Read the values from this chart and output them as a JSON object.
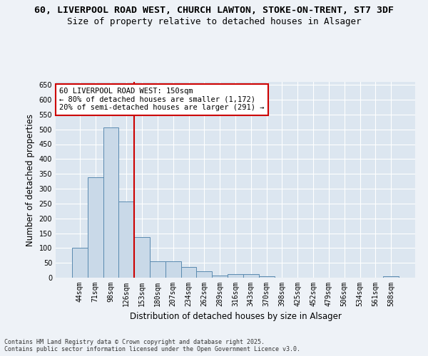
{
  "title_line1": "60, LIVERPOOL ROAD WEST, CHURCH LAWTON, STOKE-ON-TRENT, ST7 3DF",
  "title_line2": "Size of property relative to detached houses in Alsager",
  "xlabel": "Distribution of detached houses by size in Alsager",
  "ylabel": "Number of detached properties",
  "categories": [
    "44sqm",
    "71sqm",
    "98sqm",
    "126sqm",
    "153sqm",
    "180sqm",
    "207sqm",
    "234sqm",
    "262sqm",
    "289sqm",
    "316sqm",
    "343sqm",
    "370sqm",
    "398sqm",
    "425sqm",
    "452sqm",
    "479sqm",
    "506sqm",
    "534sqm",
    "561sqm",
    "588sqm"
  ],
  "values": [
    100,
    338,
    506,
    257,
    137,
    55,
    55,
    35,
    22,
    8,
    11,
    11,
    5,
    0,
    0,
    0,
    0,
    0,
    0,
    0,
    4
  ],
  "bar_color": "#c9d9e8",
  "bar_edge_color": "#5a8ab0",
  "vline_x": 3.5,
  "vline_color": "#cc0000",
  "annotation_box_text": "60 LIVERPOOL ROAD WEST: 150sqm\n← 80% of detached houses are smaller (1,172)\n20% of semi-detached houses are larger (291) →",
  "annotation_box_color": "#cc0000",
  "ylim": [
    0,
    660
  ],
  "yticks": [
    0,
    50,
    100,
    150,
    200,
    250,
    300,
    350,
    400,
    450,
    500,
    550,
    600,
    650
  ],
  "footnote": "Contains HM Land Registry data © Crown copyright and database right 2025.\nContains public sector information licensed under the Open Government Licence v3.0.",
  "bg_color": "#eef2f7",
  "plot_bg_color": "#dce6f0",
  "grid_color": "#ffffff",
  "title_fontsize": 9.5,
  "subtitle_fontsize": 9,
  "tick_fontsize": 7,
  "label_fontsize": 8.5,
  "ann_fontsize": 7.5,
  "footnote_fontsize": 6
}
